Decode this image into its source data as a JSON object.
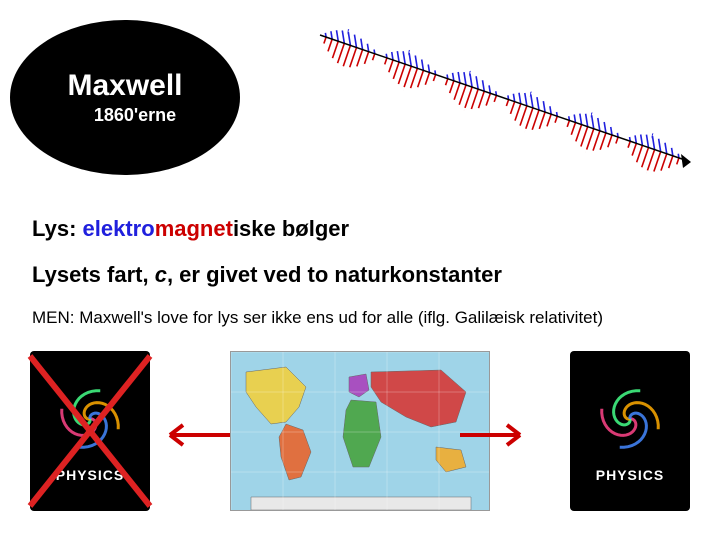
{
  "title": {
    "main": "Maxwell",
    "sub": "1860'erne",
    "ellipse_bg": "#000000",
    "text_color": "#ffffff"
  },
  "em_wave": {
    "axis_color": "#000000",
    "plane1_color": "#cc0000",
    "plane2_color": "#2020dd",
    "cycles": 6
  },
  "text": {
    "line1_segments": [
      {
        "text": "Lys: ",
        "color": "#000000"
      },
      {
        "text": "elektro",
        "color": "#2020dd"
      },
      {
        "text": "magnet",
        "color": "#cc0000"
      },
      {
        "text": "iske bølger",
        "color": "#000000"
      }
    ],
    "line2_pre": "Lysets fart, ",
    "line2_c": "c",
    "line2_post": ", er givet ved to naturkonstanter",
    "line3": "MEN: Maxwell's love for lys ser ikke ens ud for alle (iflg. Galilæisk relativitet)"
  },
  "books": {
    "label": "PHYSICS",
    "bg": "#000000",
    "swirl_colors": [
      "#ff4488",
      "#44ff88",
      "#ffaa00",
      "#4488ff"
    ],
    "cross_color": "#dd2222"
  },
  "world_map": {
    "ocean": "#9fd4e8",
    "land_colors": {
      "n_america": "#e8d050",
      "s_america": "#e07040",
      "europe": "#a850c0",
      "africa": "#50a850",
      "asia": "#d04848",
      "oceania": "#e8b040",
      "antarctica": "#e8e8e8"
    }
  },
  "arrows": {
    "color": "#cc0000"
  }
}
